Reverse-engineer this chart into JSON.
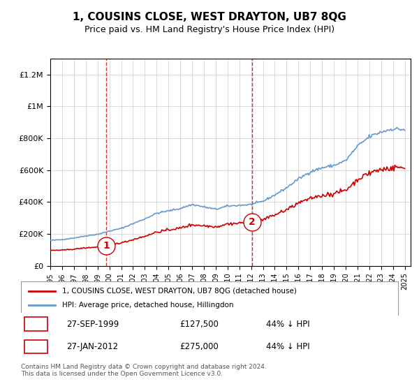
{
  "title": "1, COUSINS CLOSE, WEST DRAYTON, UB7 8QG",
  "subtitle": "Price paid vs. HM Land Registry's House Price Index (HPI)",
  "legend_line1": "1, COUSINS CLOSE, WEST DRAYTON, UB7 8QG (detached house)",
  "legend_line2": "HPI: Average price, detached house, Hillingdon",
  "sale1_label": "1",
  "sale1_date": "27-SEP-1999",
  "sale1_price": 127500,
  "sale1_pct": "44% ↓ HPI",
  "sale2_label": "2",
  "sale2_date": "27-JAN-2012",
  "sale2_price": 275000,
  "sale2_pct": "44% ↓ HPI",
  "footer": "Contains HM Land Registry data © Crown copyright and database right 2024.\nThis data is licensed under the Open Government Licence v3.0.",
  "ylim": [
    0,
    1300000
  ],
  "sale1_year": 1999.74,
  "sale2_year": 2012.07,
  "red_color": "#cc0000",
  "blue_color": "#6699cc",
  "vline_color": "#cc0000",
  "background_color": "#ffffff",
  "grid_color": "#cccccc"
}
